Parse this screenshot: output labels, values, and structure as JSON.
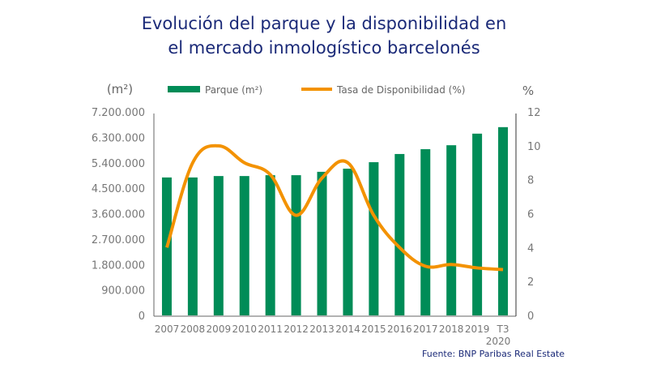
{
  "chart_data": {
    "type": "bar",
    "title": "Evolución del parque y la disponibilidad en el mercado inmologístico barcelonés",
    "title_lines": [
      "Evolución del parque y la disponibilidad en",
      "el mercado inmologístico barcelonés"
    ],
    "categories": [
      "2007",
      "2008",
      "2009",
      "2010",
      "2011",
      "2012",
      "2013",
      "2014",
      "2015",
      "2016",
      "2017",
      "2018",
      "2019",
      "T3 2020"
    ],
    "series": [
      {
        "name": "Parque (m²)",
        "type": "bar",
        "axis": "left",
        "color": "#008c57",
        "values": [
          4880000,
          4880000,
          4930000,
          4930000,
          4960000,
          4960000,
          5080000,
          5190000,
          5420000,
          5710000,
          5880000,
          6020000,
          6430000,
          6660000
        ]
      },
      {
        "name": "Tasa de Disponibilidad (%)",
        "type": "line",
        "axis": "right",
        "color": "#f39200",
        "values": [
          4.0,
          9.0,
          10.0,
          9.0,
          8.3,
          5.9,
          8.1,
          9.0,
          5.9,
          4.0,
          2.9,
          3.0,
          2.8,
          2.7
        ]
      }
    ],
    "y_left": {
      "label": "(m²)",
      "range": [
        0,
        7200000
      ],
      "ticks": [
        "0",
        "900.000",
        "1.800.000",
        "2.700.000",
        "3.600.000",
        "4.500.000",
        "5.400.000",
        "6.300.000",
        "7.200.000"
      ],
      "tick_values": [
        0,
        900000,
        1800000,
        2700000,
        3600000,
        4500000,
        5400000,
        6300000,
        7200000
      ]
    },
    "y_right": {
      "label": "%",
      "range": [
        0,
        12
      ],
      "ticks": [
        "0",
        "2",
        "4",
        "6",
        "8",
        "10",
        "12"
      ],
      "tick_values": [
        0,
        2,
        4,
        6,
        8,
        10,
        12
      ]
    },
    "legend": {
      "placement": "top",
      "entries": [
        "Parque (m²)",
        "Tasa de Disponibilidad (%)"
      ]
    },
    "grid": false,
    "source": "Fuente: BNP Paribas Real Estate"
  }
}
